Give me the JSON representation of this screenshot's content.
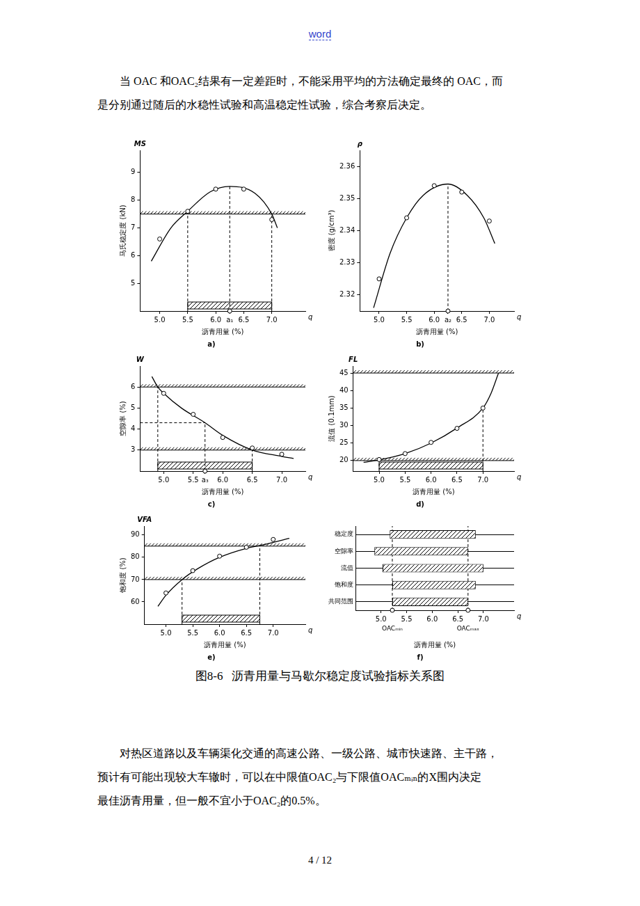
{
  "header": {
    "text": "word"
  },
  "paragraphs": [
    {
      "lines": [
        "当 OAC 和OAC₂结果有一定差距时，不能采用平均的方法确定最终的 OAC，而",
        "是分别通过随后的水稳性试验和高温稳定性试验，综合考察后决定。"
      ]
    },
    {
      "lines": [
        "对热区道路以及车辆渠化交通的高速公路、一级公路、城市快速路、主干路，",
        "预计有可能出现较大车辙时，可以在中限值OAC₂与下限值OACₘᵢₙ的X围内决定",
        "最佳沥青用量，但一般不宜小于OAC₂的0.5%。"
      ]
    }
  ],
  "chart_data": [
    {
      "type": "line",
      "panel_label": "a)",
      "y_symbol": "MS",
      "x_symbol": "q",
      "xlabel": "沥青用量 (%)",
      "ylabel": "马氏稳定度 (kN)",
      "color": "#000000",
      "grid": false,
      "xlim": [
        4.65,
        7.6
      ],
      "ylim": [
        4,
        9.8
      ],
      "xticks": [
        {
          "value": 5,
          "label": "5.0"
        },
        5.5,
        {
          "value": 6,
          "label": "6.0"
        },
        {
          "value": 6.25,
          "label": "a₁"
        },
        6.5,
        {
          "value": 7,
          "label": "7.0"
        }
      ],
      "yticks": [
        5,
        6,
        7,
        8,
        9
      ],
      "series": [
        {
          "type": "line",
          "marker": "none",
          "line_style": "solid",
          "x": [
            4.85,
            5.2,
            5.5,
            5.9,
            6.25,
            6.7,
            7.0,
            7.1
          ],
          "values": [
            5.8,
            7.0,
            7.6,
            8.3,
            8.5,
            8.25,
            7.5,
            7.0
          ]
        },
        {
          "type": "scatter",
          "marker": "circle",
          "x": [
            5.0,
            5.5,
            6.0,
            6.5,
            7.0
          ],
          "values": [
            6.6,
            7.6,
            8.4,
            8.4,
            7.3
          ]
        }
      ],
      "limits": [
        7.5
      ],
      "range": [
        5.5,
        7.0
      ],
      "reference_lines": [
        {
          "x": 5.5,
          "y": 7.6,
          "line_style": "dashed"
        },
        {
          "x": 6.25,
          "y": 8.5,
          "line_style": "dashed",
          "marker": "circle"
        },
        {
          "x": 7.0,
          "y": 7.5,
          "line_style": "dashed"
        }
      ]
    },
    {
      "type": "line",
      "panel_label": "b)",
      "y_symbol": "ρ",
      "x_symbol": "q",
      "xlabel": "沥青用量 (%)",
      "ylabel": "密度 (g/cm³)",
      "color": "#000000",
      "grid": false,
      "xlim": [
        4.65,
        7.45
      ],
      "ylim": [
        2.315,
        2.365
      ],
      "xticks": [
        {
          "value": 5,
          "label": "5.0"
        },
        5.5,
        {
          "value": 6,
          "label": "6.0"
        },
        {
          "value": 6.25,
          "label": "a₂"
        },
        6.5,
        {
          "value": 7,
          "label": "7.0"
        }
      ],
      "yticks": [
        2.32,
        2.33,
        2.34,
        2.35,
        2.36
      ],
      "series": [
        {
          "type": "line",
          "marker": "none",
          "line_style": "solid",
          "x": [
            4.9,
            5.2,
            5.5,
            5.8,
            6.25,
            6.6,
            6.9,
            7.1
          ],
          "values": [
            2.316,
            2.333,
            2.344,
            2.351,
            2.3545,
            2.351,
            2.344,
            2.336
          ]
        },
        {
          "type": "scatter",
          "marker": "circle",
          "x": [
            5.0,
            5.5,
            6.0,
            6.5,
            7.0
          ],
          "values": [
            2.325,
            2.344,
            2.354,
            2.352,
            2.343
          ]
        }
      ],
      "reference_lines": [
        {
          "x": 6.25,
          "y": 2.3545,
          "line_style": "dashed",
          "marker": "circle"
        }
      ]
    },
    {
      "type": "line",
      "panel_label": "c)",
      "y_symbol": "W",
      "x_symbol": "q",
      "xlabel": "沥青用量 (%)",
      "ylabel": "空隙率 (%)",
      "color": "#000000",
      "grid": false,
      "xlim": [
        4.6,
        7.4
      ],
      "ylim": [
        2,
        7
      ],
      "xticks": [
        {
          "value": 5,
          "label": "5.0"
        },
        5.5,
        {
          "value": 5.7,
          "label": "a₃"
        },
        {
          "value": 6,
          "label": "6.0"
        },
        6.5,
        {
          "value": 7,
          "label": "7.0"
        }
      ],
      "yticks": [
        3,
        4,
        5,
        6
      ],
      "series": [
        {
          "type": "line",
          "marker": "none",
          "line_style": "solid",
          "x": [
            4.8,
            4.9,
            5.0,
            5.3,
            5.7,
            6.0,
            6.5,
            7.0,
            7.2
          ],
          "values": [
            6.5,
            6.0,
            5.7,
            5.0,
            4.3,
            3.7,
            3.0,
            2.7,
            2.6
          ]
        },
        {
          "type": "scatter",
          "marker": "circle",
          "x": [
            5.0,
            5.5,
            6.0,
            6.5,
            7.0
          ],
          "values": [
            5.7,
            4.7,
            3.6,
            3.1,
            2.8
          ]
        }
      ],
      "limits": [
        6,
        3
      ],
      "range": [
        4.9,
        6.5
      ],
      "reference_lines": [
        {
          "x": 4.9,
          "y": 6,
          "line_style": "dashed"
        },
        {
          "x": 5.7,
          "y": 4.3,
          "line_style": "dashed",
          "marker": "circle",
          "from_y_axis": true
        },
        {
          "x": 6.5,
          "y": 3,
          "line_style": "dashed"
        }
      ]
    },
    {
      "type": "line",
      "panel_label": "d)",
      "y_symbol": "FL",
      "x_symbol": "q",
      "xlabel": "沥青用量 (%)",
      "ylabel": "流值 (0.1mm)",
      "color": "#000000",
      "grid": false,
      "xlim": [
        4.5,
        7.6
      ],
      "ylim": [
        17,
        47
      ],
      "xticks": [
        {
          "value": 5,
          "label": "5.0"
        },
        5.5,
        {
          "value": 6,
          "label": "6.0"
        },
        6.5,
        {
          "value": 7,
          "label": "7.0"
        }
      ],
      "yticks": [
        20,
        25,
        30,
        35,
        40,
        45
      ],
      "series": [
        {
          "type": "line",
          "marker": "none",
          "line_style": "solid",
          "x": [
            4.7,
            5.0,
            5.5,
            6.0,
            6.5,
            7.0,
            7.15,
            7.3
          ],
          "values": [
            19.5,
            20.2,
            22,
            25,
            29.3,
            35,
            39,
            45
          ]
        },
        {
          "type": "scatter",
          "marker": "circle",
          "x": [
            5.0,
            5.5,
            6.0,
            6.5,
            7.0
          ],
          "values": [
            20.3,
            22,
            25.2,
            29.2,
            35
          ]
        }
      ],
      "limits": [
        20,
        45
      ],
      "range": [
        5.0,
        7.0
      ],
      "reference_lines": [
        {
          "x": 5.0,
          "y": 20.3,
          "line_style": "dashed"
        },
        {
          "x": 7.0,
          "y": 35,
          "line_style": "dashed"
        }
      ]
    },
    {
      "type": "line",
      "panel_label": "e)",
      "y_symbol": "VFA",
      "x_symbol": "q",
      "xlabel": "沥青用量 (%)",
      "ylabel": "饱和度 (%)",
      "color": "#000000",
      "grid": false,
      "xlim": [
        4.6,
        7.6
      ],
      "ylim": [
        50,
        94
      ],
      "xticks": [
        {
          "value": 5,
          "label": "5.0"
        },
        5.5,
        {
          "value": 6,
          "label": "6.0"
        },
        6.5,
        {
          "value": 7,
          "label": "7.0"
        }
      ],
      "yticks": [
        60,
        70,
        80,
        90
      ],
      "series": [
        {
          "type": "line",
          "marker": "none",
          "line_style": "solid",
          "x": [
            4.85,
            5.0,
            5.3,
            5.6,
            6.0,
            6.5,
            6.8,
            7.3
          ],
          "values": [
            58,
            63,
            70,
            75,
            80,
            84,
            85.5,
            88.5
          ]
        },
        {
          "type": "scatter",
          "marker": "circle",
          "x": [
            5.0,
            5.5,
            6.0,
            6.5,
            7.0
          ],
          "values": [
            64,
            74,
            80.5,
            84.5,
            88
          ]
        }
      ],
      "limits": [
        70,
        85
      ],
      "range": [
        5.3,
        6.75
      ],
      "reference_lines": [
        {
          "x": 5.3,
          "y": 70,
          "line_style": "dashed"
        },
        {
          "x": 6.75,
          "y": 85,
          "line_style": "dashed"
        }
      ]
    },
    {
      "type": "bar",
      "orientation": "horizontal",
      "panel_label": "f)",
      "x_symbol": "q",
      "xlabel": "沥青用量 (%)",
      "color": "#000000",
      "grid": "y",
      "xlim": [
        4.5,
        7.6
      ],
      "xticks": [
        {
          "value": 5,
          "label": "5.0"
        },
        5.5,
        {
          "value": 6,
          "label": "6.0"
        },
        6.5,
        {
          "value": 7,
          "label": "7.0"
        }
      ],
      "categories": [
        "稳定度",
        "空隙率",
        "流值",
        "饱和度",
        "共同范围"
      ],
      "values": [
        [
          5.17,
          6.85
        ],
        [
          4.87,
          6.7
        ],
        [
          5.03,
          7.0
        ],
        [
          5.22,
          6.85
        ],
        [
          5.22,
          6.7
        ]
      ],
      "reference_lines": [
        {
          "x": 5.22,
          "line_style": "dashed",
          "marker": "circle",
          "label": "OACₘᵢₙ"
        },
        {
          "x": 6.7,
          "line_style": "dashed",
          "marker": "circle",
          "label": "OACₘₐₓ"
        }
      ]
    }
  ],
  "caption": "图8-6   沥青用量与马歇尔稳定度试验指标关系图",
  "page_number": "4 / 12"
}
